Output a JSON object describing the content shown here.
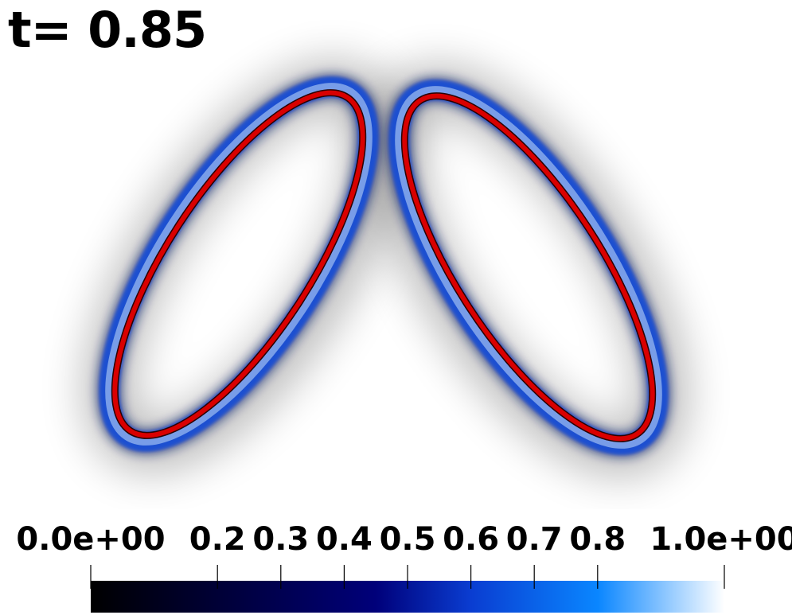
{
  "annotation": {
    "time_text": "t= 0.85"
  },
  "colorbar": {
    "min_label": "0.0e+00",
    "max_label": "1.0e+00",
    "ticks": [
      {
        "value": 0.0,
        "label": "0.0e+00"
      },
      {
        "value": 0.2,
        "label": "0.2"
      },
      {
        "value": 0.3,
        "label": "0.3"
      },
      {
        "value": 0.4,
        "label": "0.4"
      },
      {
        "value": 0.5,
        "label": "0.5"
      },
      {
        "value": 0.6,
        "label": "0.6"
      },
      {
        "value": 0.7,
        "label": "0.7"
      },
      {
        "value": 0.8,
        "label": "0.8"
      },
      {
        "value": 1.0,
        "label": "1.0e+00"
      }
    ],
    "colormap": [
      "#000000",
      "#00007a",
      "#0a3dd1",
      "#0a86ff",
      "#ffffff"
    ]
  },
  "colors": {
    "ring_red": "#d90000",
    "ring_blue": "#2c6fe0",
    "ring_dark": "#0b1f6b",
    "halo": "#1a1a1a"
  }
}
